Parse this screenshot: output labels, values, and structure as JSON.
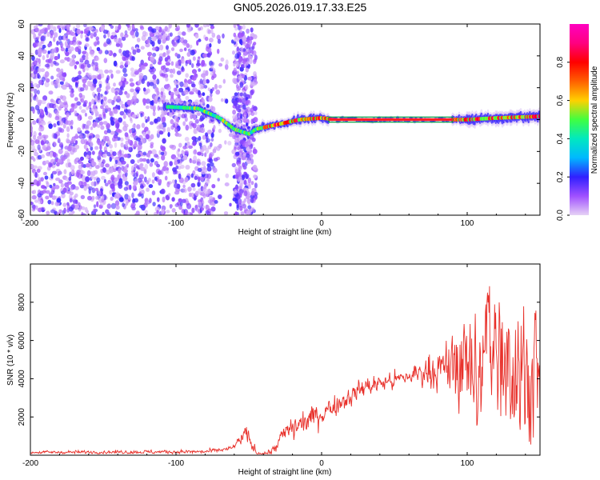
{
  "title": "GN05.2026.019.17.33.E25",
  "chart_data": [
    {
      "type": "heatmap",
      "name": "spectrogram",
      "xlabel": "Height of straight line (km)",
      "ylabel": "Frequency (Hz)",
      "xlim": [
        -200,
        150
      ],
      "ylim": [
        -60,
        60
      ],
      "xticks": [
        -200,
        -100,
        0,
        100
      ],
      "yticks": [
        -60,
        -40,
        -20,
        0,
        20,
        40,
        60
      ],
      "colorbar": {
        "label": "Normalized spectral amplitude",
        "range": [
          0,
          1
        ],
        "ticks": [
          "0.0",
          "0.2",
          "0.4",
          "0.6",
          "0.8"
        ],
        "colors": [
          "#e6d2f5",
          "#a050ff",
          "#3020ff",
          "#00b8ff",
          "#00e8c0",
          "#40ff40",
          "#ffd000",
          "#ff6000",
          "#ff0000",
          "#ff0080",
          "#ff00c0"
        ]
      },
      "ridge": {
        "description_points": [
          [
            -105,
            8
          ],
          [
            -85,
            7
          ],
          [
            -70,
            1
          ],
          [
            -60,
            -6
          ],
          [
            -50,
            -9
          ],
          [
            -45,
            -6
          ],
          [
            -30,
            -3
          ],
          [
            -15,
            0
          ],
          [
            0,
            1
          ],
          [
            10,
            0
          ],
          [
            60,
            0
          ],
          [
            100,
            0
          ],
          [
            120,
            1
          ],
          [
            150,
            2
          ]
        ],
        "strong_segment_km": [
          5,
          90
        ],
        "strong_freq_hz": 0
      },
      "noise_band_km": [
        -200,
        -45
      ]
    },
    {
      "type": "line",
      "name": "snr",
      "xlabel": "Height of straight line (km)",
      "ylabel": "SNR (10 * v/v)",
      "xlim": [
        -200,
        150
      ],
      "ylim": [
        0,
        10000
      ],
      "xticks": [
        -200,
        -100,
        0,
        100
      ],
      "yticks": [
        2000,
        4000,
        6000,
        8000
      ],
      "color": "#e8302a",
      "envelope_center": [
        [
          -200,
          150
        ],
        [
          -80,
          180
        ],
        [
          -62,
          350
        ],
        [
          -52,
          1100
        ],
        [
          -45,
          100
        ],
        [
          -35,
          100
        ],
        [
          -25,
          1200
        ],
        [
          0,
          2200
        ],
        [
          30,
          3600
        ],
        [
          55,
          4000
        ],
        [
          75,
          4500
        ],
        [
          100,
          4200
        ],
        [
          120,
          5200
        ],
        [
          150,
          3400
        ]
      ],
      "envelope_spread": [
        [
          -200,
          100
        ],
        [
          -60,
          150
        ],
        [
          -52,
          600
        ],
        [
          -40,
          100
        ],
        [
          -20,
          900
        ],
        [
          20,
          700
        ],
        [
          60,
          600
        ],
        [
          90,
          1800
        ],
        [
          110,
          3500
        ],
        [
          130,
          4400
        ],
        [
          150,
          3800
        ]
      ],
      "sample_step_km": 0.35
    }
  ]
}
